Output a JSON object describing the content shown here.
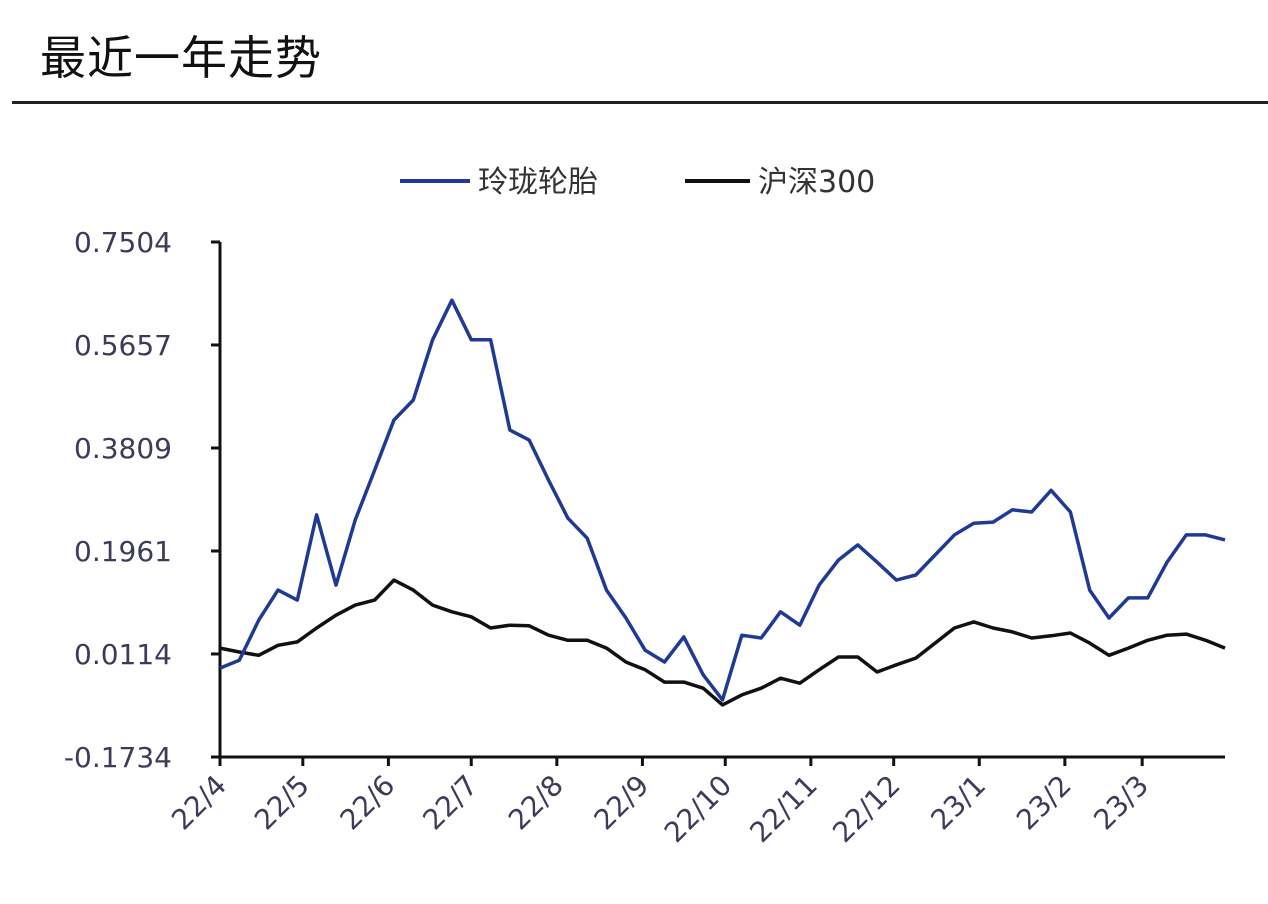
{
  "title": "最近一年走势",
  "chart_data": {
    "type": "line",
    "title": "",
    "xlabel": "",
    "ylabel": "",
    "ylim": [
      -0.1734,
      0.7504
    ],
    "xlim": [
      "2022-04-01",
      "2023-03-31"
    ],
    "grid": false,
    "legend_position": "top",
    "y_ticks": [
      "0.7504",
      "0.5657",
      "0.3809",
      "0.1961",
      "0.0114",
      "-0.1734"
    ],
    "x_ticks": [
      "22/4",
      "22/5",
      "22/6",
      "22/7",
      "22/8",
      "22/9",
      "22/10",
      "22/11",
      "22/12",
      "23/1",
      "23/2",
      "23/3"
    ],
    "x": [
      "2022-04-01",
      "2022-04-08",
      "2022-04-15",
      "2022-04-22",
      "2022-04-29",
      "2022-05-06",
      "2022-05-13",
      "2022-05-20",
      "2022-05-27",
      "2022-06-03",
      "2022-06-10",
      "2022-06-17",
      "2022-06-24",
      "2022-07-01",
      "2022-07-08",
      "2022-07-15",
      "2022-07-22",
      "2022-07-29",
      "2022-08-05",
      "2022-08-12",
      "2022-08-19",
      "2022-08-26",
      "2022-09-02",
      "2022-09-09",
      "2022-09-16",
      "2022-09-23",
      "2022-09-30",
      "2022-10-07",
      "2022-10-14",
      "2022-10-21",
      "2022-10-28",
      "2022-11-04",
      "2022-11-11",
      "2022-11-18",
      "2022-11-25",
      "2022-12-02",
      "2022-12-09",
      "2022-12-16",
      "2022-12-23",
      "2022-12-30",
      "2023-01-06",
      "2023-01-13",
      "2023-01-20",
      "2023-01-27",
      "2023-02-03",
      "2023-02-10",
      "2023-02-17",
      "2023-02-24",
      "2023-03-03",
      "2023-03-10",
      "2023-03-17",
      "2023-03-24",
      "2023-03-31"
    ],
    "series": [
      {
        "name": "玲珑轮胎",
        "color": "#1f3a93",
        "values": [
          -0.014,
          0.0,
          0.072,
          0.126,
          0.108,
          0.261,
          0.135,
          0.252,
          0.341,
          0.431,
          0.467,
          0.575,
          0.646,
          0.575,
          0.575,
          0.413,
          0.395,
          0.323,
          0.255,
          0.219,
          0.126,
          0.076,
          0.018,
          -0.003,
          0.042,
          -0.026,
          -0.071,
          0.045,
          0.04,
          0.087,
          0.063,
          0.135,
          0.18,
          0.207,
          0.176,
          0.144,
          0.153,
          0.189,
          0.225,
          0.246,
          0.248,
          0.27,
          0.266,
          0.305,
          0.266,
          0.126,
          0.076,
          0.112,
          0.112,
          0.176,
          0.225,
          0.225,
          0.216
        ]
      },
      {
        "name": "沪深300",
        "color": "#111111",
        "values": [
          0.022,
          0.015,
          0.009,
          0.027,
          0.033,
          0.058,
          0.081,
          0.099,
          0.108,
          0.144,
          0.126,
          0.099,
          0.087,
          0.078,
          0.058,
          0.063,
          0.062,
          0.045,
          0.036,
          0.036,
          0.022,
          -0.003,
          -0.017,
          -0.039,
          -0.039,
          -0.05,
          -0.08,
          -0.062,
          -0.05,
          -0.032,
          -0.041,
          -0.017,
          0.006,
          0.006,
          -0.021,
          -0.008,
          0.004,
          0.031,
          0.058,
          0.069,
          0.058,
          0.051,
          0.04,
          0.044,
          0.049,
          0.031,
          0.009,
          0.022,
          0.036,
          0.045,
          0.047,
          0.036,
          0.022
        ]
      }
    ]
  }
}
